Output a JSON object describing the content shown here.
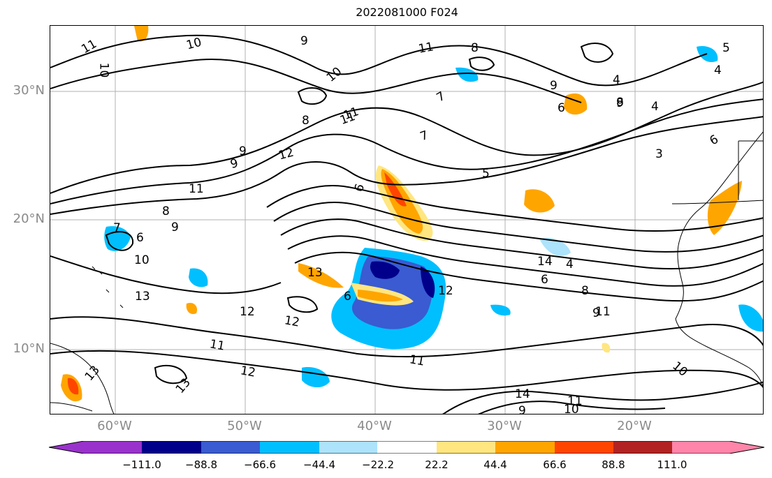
{
  "title": "2022081000 F024",
  "lat_ticks": [
    "30°N",
    "20°N",
    "10°N"
  ],
  "lon_ticks": [
    "60°W",
    "50°W",
    "40°W",
    "30°W",
    "20°W"
  ],
  "colorbar": {
    "ticks": [
      "−111.0",
      "−88.8",
      "−66.6",
      "−44.4",
      "−22.2",
      "22.2",
      "44.4",
      "66.6",
      "88.8",
      "111.0"
    ],
    "colors": [
      "#9932cc",
      "#00008b",
      "#3a5bd1",
      "#00bfff",
      "#ade3fb",
      "#ffffff",
      "#ffe680",
      "#ffa500",
      "#ff4500",
      "#b22222",
      "#ff85aa"
    ]
  },
  "contour_labels": [
    "11",
    "10",
    "10",
    "9",
    "11",
    "8",
    "5",
    "4",
    "10",
    "11",
    "7",
    "9",
    "6",
    "4",
    "9",
    "8",
    "11",
    "7",
    "3",
    "6",
    "9",
    "12",
    "9",
    "5",
    "6",
    "11",
    "8",
    "9",
    "10",
    "7",
    "6",
    "13",
    "12",
    "12",
    "13",
    "6",
    "12",
    "14",
    "6",
    "4",
    "8",
    "9",
    "11",
    "11",
    "13",
    "12",
    "11",
    "13",
    "10",
    "14",
    "11",
    "10",
    "9",
    "8",
    "4",
    "4"
  ]
}
